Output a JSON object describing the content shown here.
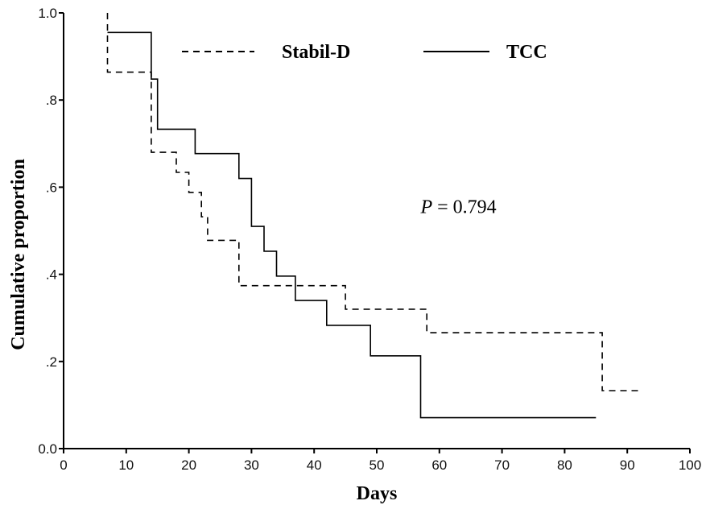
{
  "chart_data": {
    "type": "line",
    "step": true,
    "title": "",
    "xlabel": "Days",
    "ylabel": "Cumulative proportion",
    "xlim": [
      0,
      100
    ],
    "ylim": [
      0,
      1
    ],
    "x_ticks": [
      0,
      10,
      20,
      30,
      40,
      50,
      60,
      70,
      80,
      90,
      100
    ],
    "x_tick_labels": [
      "0",
      "10",
      "20",
      "30",
      "40",
      "50",
      "60",
      "70",
      "80",
      "90",
      "100"
    ],
    "y_ticks": [
      0,
      0.2,
      0.4,
      0.6,
      0.8,
      1.0
    ],
    "y_tick_labels": [
      "0.0",
      ".2",
      ".4",
      ".6",
      ".8",
      "1.0"
    ],
    "grid": false,
    "legend_position": "top",
    "annotation": {
      "italic": "P",
      "rest": " = 0.794",
      "x": 57,
      "y": 0.555
    },
    "series": [
      {
        "name": "Stabil-D",
        "dash": "dashed",
        "color": "#000000",
        "points": [
          [
            7,
            1.0
          ],
          [
            7,
            0.864
          ],
          [
            14,
            0.864
          ],
          [
            14,
            0.68
          ],
          [
            18,
            0.68
          ],
          [
            18,
            0.634
          ],
          [
            20,
            0.634
          ],
          [
            20,
            0.588
          ],
          [
            22,
            0.588
          ],
          [
            22,
            0.532
          ],
          [
            23,
            0.532
          ],
          [
            23,
            0.478
          ],
          [
            28,
            0.478
          ],
          [
            28,
            0.374
          ],
          [
            45,
            0.374
          ],
          [
            45,
            0.32
          ],
          [
            58,
            0.32
          ],
          [
            58,
            0.266
          ],
          [
            86,
            0.266
          ],
          [
            86,
            0.133
          ],
          [
            92,
            0.133
          ]
        ]
      },
      {
        "name": "TCC",
        "dash": "solid",
        "color": "#000000",
        "points": [
          [
            7,
            0.955
          ],
          [
            14,
            0.955
          ],
          [
            14,
            0.848
          ],
          [
            15,
            0.848
          ],
          [
            15,
            0.733
          ],
          [
            21,
            0.733
          ],
          [
            21,
            0.677
          ],
          [
            28,
            0.677
          ],
          [
            28,
            0.62
          ],
          [
            30,
            0.62
          ],
          [
            30,
            0.51
          ],
          [
            32,
            0.51
          ],
          [
            32,
            0.453
          ],
          [
            34,
            0.453
          ],
          [
            34,
            0.396
          ],
          [
            37,
            0.396
          ],
          [
            37,
            0.34
          ],
          [
            42,
            0.34
          ],
          [
            42,
            0.283
          ],
          [
            49,
            0.283
          ],
          [
            49,
            0.213
          ],
          [
            57,
            0.213
          ],
          [
            57,
            0.071
          ],
          [
            85,
            0.071
          ]
        ]
      }
    ]
  }
}
